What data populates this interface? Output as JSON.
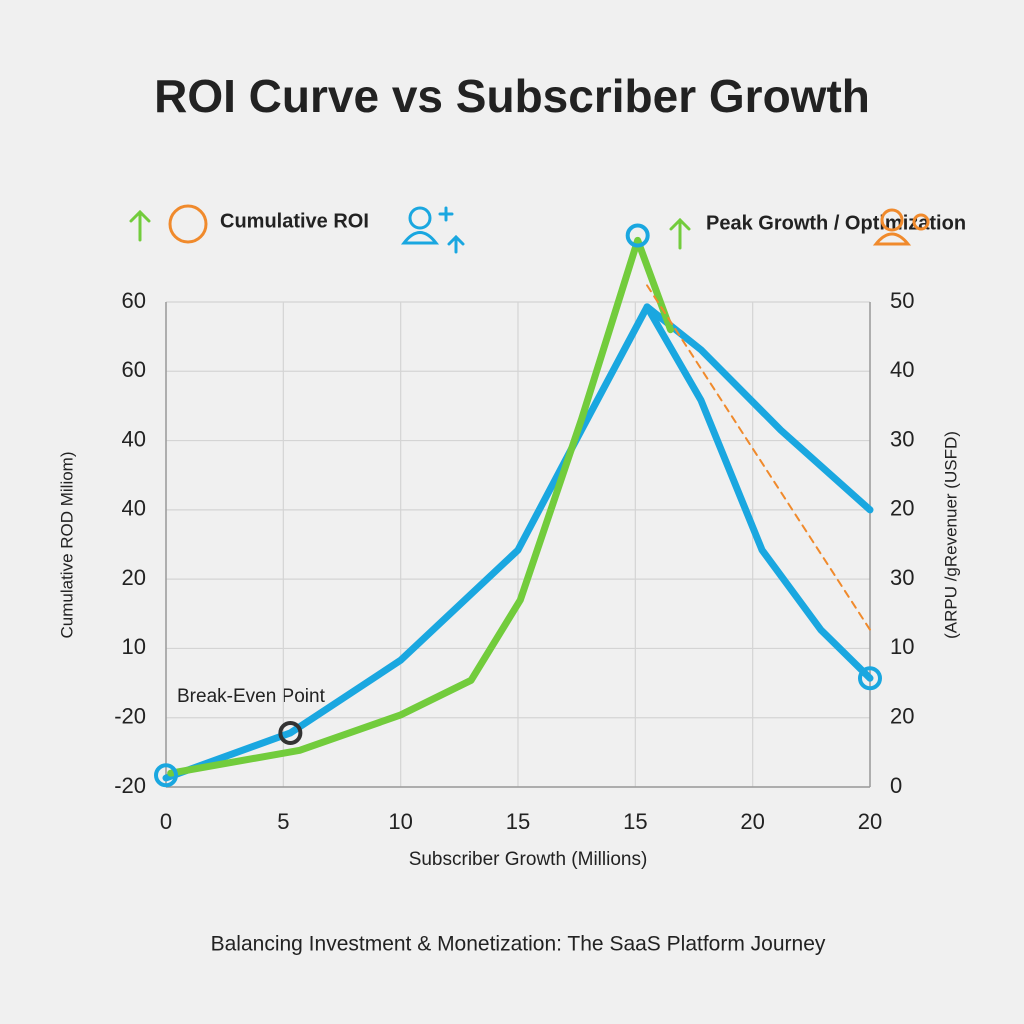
{
  "chart_data": {
    "type": "line",
    "title": "ROI Curve vs Subscriber Growth",
    "subtitle": "Balancing Investment & Monetization: The SaaS Platform Journey",
    "x_label": "Subscriber Growth (Millions)",
    "y_label": "Cumulative ROD Miliom)",
    "y2_label": "(ARPU /gRevenuer (USFD)",
    "xlim": [
      0,
      30
    ],
    "xticks": [
      0,
      5,
      10,
      15,
      {
        "value": 20,
        "label": "15"
      },
      {
        "value": 25,
        "label": "20"
      },
      {
        "value": 30,
        "label": "20"
      }
    ],
    "ylim": [
      -20,
      50
    ],
    "yticks": [
      -20,
      {
        "value": -10,
        "label": "-20"
      },
      {
        "value": 0,
        "label": "10"
      },
      {
        "value": 10,
        "label": "20"
      },
      {
        "value": 20,
        "label": "40"
      },
      {
        "value": 30,
        "label": "40"
      },
      {
        "value": 40,
        "label": "60"
      },
      {
        "value": 50,
        "label": "60"
      }
    ],
    "y2lim": [
      0,
      70
    ],
    "y2ticks": [
      0,
      {
        "value": 10,
        "label": "20"
      },
      {
        "value": 20,
        "label": "10"
      },
      30,
      {
        "value": 40,
        "label": "20"
      },
      {
        "value": 50,
        "label": "30"
      },
      {
        "value": 60,
        "label": "40"
      },
      {
        "value": 70,
        "label": "50"
      }
    ],
    "grid": true,
    "series": [
      {
        "color": "#1aa7e0",
        "x": [
          0,
          5.3,
          10,
          15,
          17.7,
          20.5,
          22.8,
          26.2,
          30
        ],
        "values": [
          -18.7,
          -12.2,
          -1.7,
          14.2,
          31.5,
          49.3,
          43.1,
          31.5,
          20
        ]
      },
      {
        "color": "#1aa7e0",
        "x": [
          20.5,
          22.8,
          25.4,
          27.9,
          30
        ],
        "values": [
          49.3,
          35.8,
          14.2,
          2.7,
          -4.3
        ]
      },
      {
        "color": "#72cc3c",
        "x": [
          0.2,
          5.7,
          10,
          13,
          15.1,
          17.7,
          20.1,
          21.5
        ],
        "values": [
          -18,
          -14.7,
          -9.6,
          -4.6,
          7,
          33,
          58.9,
          46
        ]
      },
      {
        "color": "#f08a2c",
        "dashed": true,
        "x": [
          20.5,
          30
        ],
        "values": [
          52.4,
          2.7
        ]
      }
    ],
    "points": [
      {
        "x": 0,
        "y": -18.3,
        "color": "#1aa7e0"
      },
      {
        "x": 5.3,
        "y": -12.2,
        "color": "#333333"
      },
      {
        "x": 20.1,
        "y": 59.6,
        "color": "#1aa7e0"
      },
      {
        "x": 30,
        "y": -4.3,
        "color": "#1aa7e0"
      }
    ],
    "annotations": [
      "Break-Even Point",
      "Cumulative ROI",
      "Peak Growth / Optimization"
    ]
  }
}
